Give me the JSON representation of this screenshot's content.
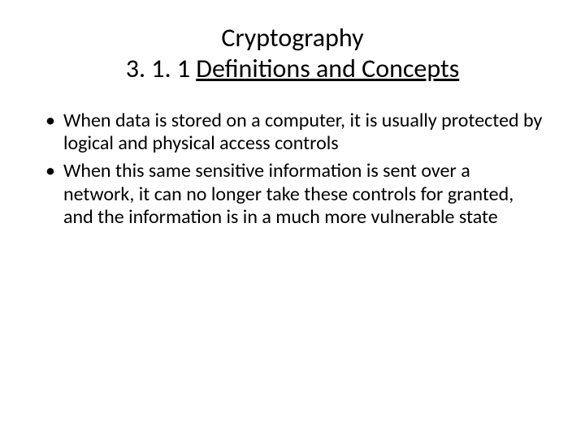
{
  "slide": {
    "title_line1": "Cryptography",
    "title_prefix": "3. 1. 1 ",
    "title_underlined": "Definitions and Concepts",
    "bullets": [
      "When data is stored on a computer, it is usually protected by logical and physical access controls",
      "When this same sensitive information is sent over a network, it can no longer take these controls for granted, and the information is in a much more vulnerable state"
    ],
    "colors": {
      "background": "#ffffff",
      "text": "#000000"
    },
    "typography": {
      "title_fontsize": 32,
      "body_fontsize": 24,
      "font_family": "Calibri"
    }
  }
}
